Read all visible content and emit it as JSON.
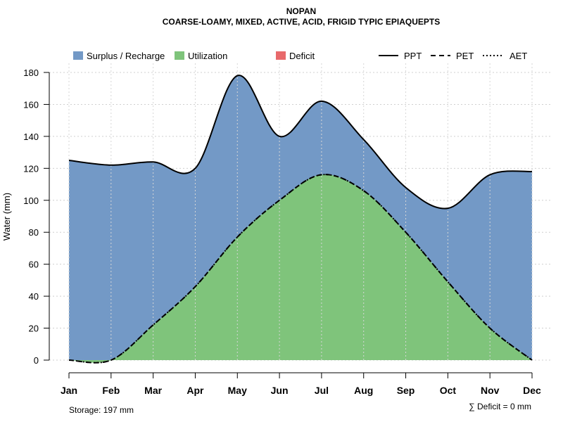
{
  "chart_data": {
    "type": "area",
    "title": "NOPAN",
    "subtitle": "COARSE-LOAMY, MIXED, ACTIVE, ACID, FRIGID TYPIC EPIAQUEPTS",
    "xlabel": "",
    "ylabel": "Water (mm)",
    "ylim": [
      0,
      180
    ],
    "yticks": [
      0,
      20,
      40,
      60,
      80,
      100,
      120,
      140,
      160,
      180
    ],
    "categories": [
      "Jan",
      "Feb",
      "Mar",
      "Apr",
      "May",
      "Jun",
      "Jul",
      "Aug",
      "Sep",
      "Oct",
      "Nov",
      "Dec"
    ],
    "grid": true,
    "series": [
      {
        "name": "PPT",
        "style": "solid",
        "values": [
          125,
          122,
          124,
          120,
          178,
          140,
          162,
          138,
          108,
          95,
          116,
          118
        ]
      },
      {
        "name": "PET",
        "style": "dashed",
        "values": [
          0,
          0,
          22,
          46,
          77,
          100,
          116,
          106,
          80,
          49,
          20,
          0
        ]
      },
      {
        "name": "AET",
        "style": "dotted",
        "values": [
          0,
          0,
          22,
          46,
          77,
          100,
          116,
          106,
          80,
          49,
          20,
          0
        ]
      }
    ],
    "fill_areas": [
      {
        "name": "Surplus / Recharge",
        "color": "#7399c6"
      },
      {
        "name": "Utilization",
        "color": "#7fc47b"
      },
      {
        "name": "Deficit",
        "color": "#e8696b"
      }
    ],
    "legend_position": "top",
    "annotations": {
      "storage": "Storage: 197 mm",
      "deficit": "∑ Deficit = 0 mm"
    }
  }
}
